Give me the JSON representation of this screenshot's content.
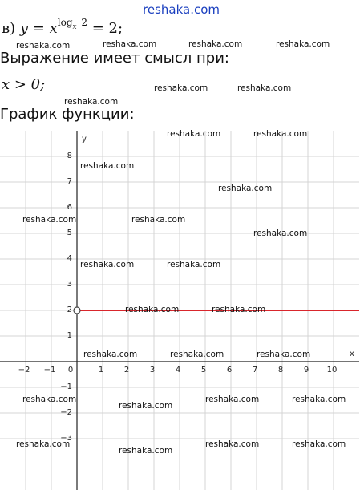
{
  "site": "reshaka.com",
  "problem": {
    "label": "в)",
    "lhs": "y = x",
    "exp_base": "log",
    "exp_sub": "x",
    "exp_arg": "2",
    "rhs": "= 2;"
  },
  "domain_heading": "Выражение имеет смысл при:",
  "domain": "x > 0;",
  "graph_heading": "График функции:",
  "watermarks": [
    "reshaka.com",
    "reshaka.com",
    "reshaka.com",
    "reshaka.com",
    "reshaka.com",
    "reshaka.com",
    "reshaka.com",
    "reshaka.com",
    "reshaka.com",
    "reshaka.com",
    "reshaka.com",
    "reshaka.com",
    "reshaka.com",
    "reshaka.com",
    "reshaka.com",
    "reshaka.com",
    "reshaka.com",
    "reshaka.com",
    "reshaka.com",
    "reshaka.com",
    "reshaka.com",
    "reshaka.com",
    "reshaka.com",
    "reshaka.com",
    "reshaka.com",
    "reshaka.com",
    "reshaka.com",
    "reshaka.com",
    "reshaka.com"
  ],
  "chart_data": {
    "type": "line",
    "x_label": "x",
    "y_label": "y",
    "xlim": [
      -3,
      11
    ],
    "ylim": [
      -5,
      9
    ],
    "xticks": [
      {
        "value": -2,
        "label": "−2"
      },
      {
        "value": -1,
        "label": "−1"
      },
      0,
      1,
      2,
      3,
      4,
      5,
      6,
      7,
      8,
      9,
      10
    ],
    "yticks": [
      {
        "value": -3,
        "label": "−3"
      },
      {
        "value": -2,
        "label": "−2"
      },
      {
        "value": -1,
        "label": "−1"
      },
      1,
      2,
      3,
      4,
      5,
      6,
      7,
      8
    ],
    "grid": true,
    "series": [
      {
        "color": "#d9262c",
        "x": [
          0,
          11
        ],
        "values": [
          2,
          2
        ],
        "open_start": true
      }
    ]
  }
}
